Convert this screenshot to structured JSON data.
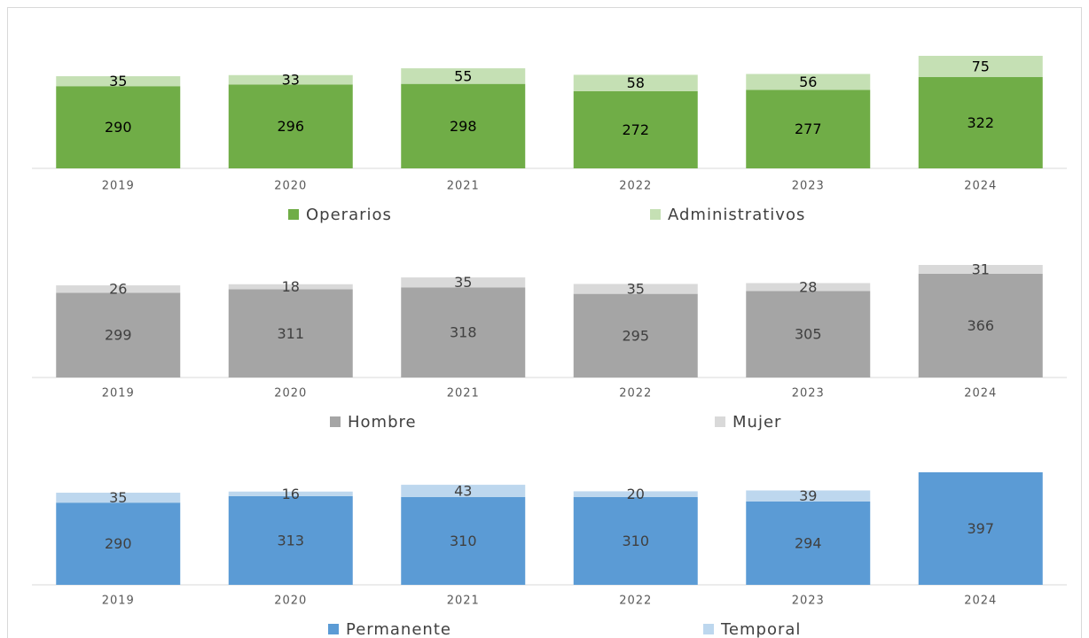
{
  "chart_data": [
    {
      "type": "bar",
      "stacked": true,
      "categories": [
        "2019",
        "2020",
        "2021",
        "2022",
        "2023",
        "2024"
      ],
      "series": [
        {
          "name": "Operarios",
          "color": "#70ad47",
          "label_color": "#000000",
          "values": [
            290,
            296,
            298,
            272,
            277,
            322
          ]
        },
        {
          "name": "Administrativos",
          "color": "#c5e0b4",
          "label_color": "#000000",
          "values": [
            35,
            33,
            55,
            58,
            56,
            75
          ]
        }
      ]
    },
    {
      "type": "bar",
      "stacked": true,
      "categories": [
        "2019",
        "2020",
        "2021",
        "2022",
        "2023",
        "2024"
      ],
      "series": [
        {
          "name": "Hombre",
          "color": "#a5a5a5",
          "label_color": "#404040",
          "values": [
            299,
            311,
            318,
            295,
            305,
            366
          ]
        },
        {
          "name": "Mujer",
          "color": "#d9d9d9",
          "label_color": "#404040",
          "values": [
            26,
            18,
            35,
            35,
            28,
            31
          ]
        }
      ]
    },
    {
      "type": "bar",
      "stacked": true,
      "categories": [
        "2019",
        "2020",
        "2021",
        "2022",
        "2023",
        "2024"
      ],
      "series": [
        {
          "name": "Permanente",
          "color": "#5b9bd5",
          "label_color": "#404040",
          "values": [
            290,
            313,
            310,
            310,
            294,
            397
          ]
        },
        {
          "name": "Temporal",
          "color": "#bdd7ee",
          "label_color": "#404040",
          "values": [
            35,
            16,
            43,
            20,
            39,
            null
          ]
        }
      ]
    }
  ]
}
